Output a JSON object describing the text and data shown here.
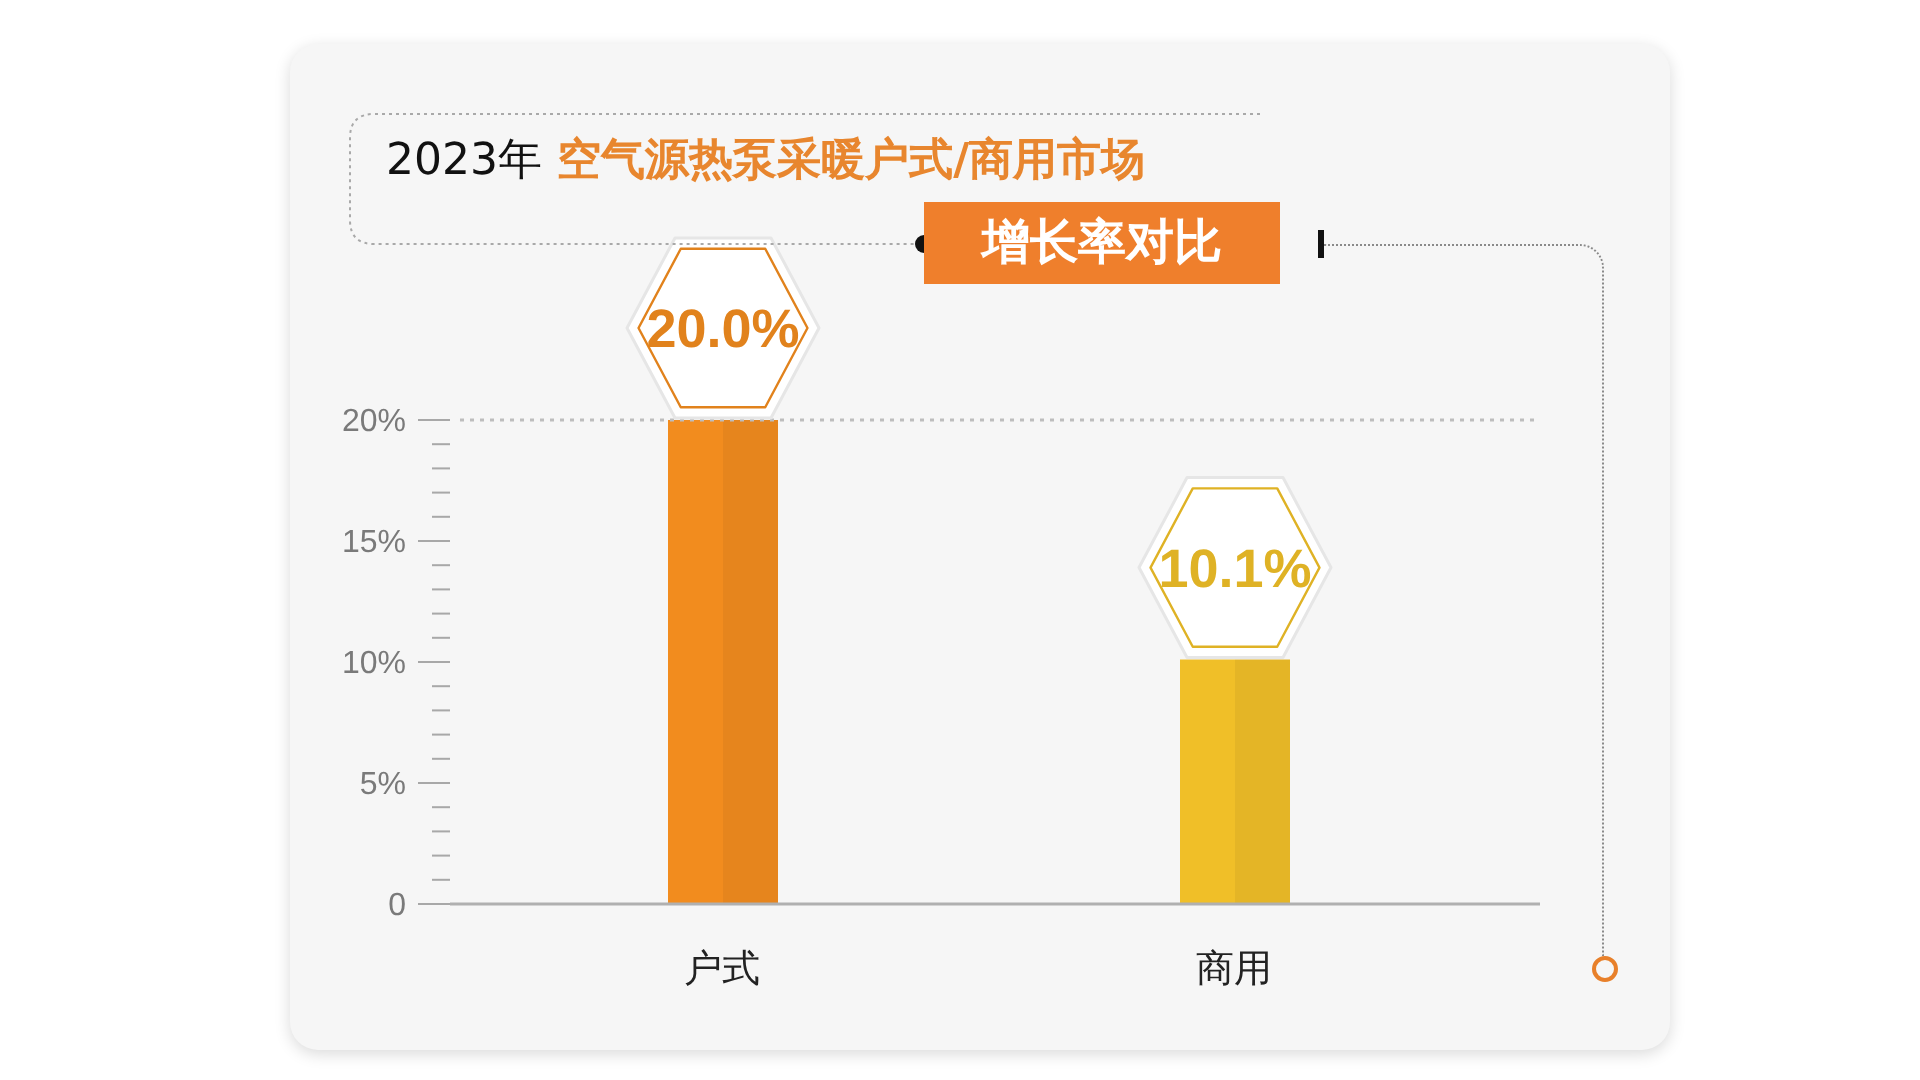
{
  "chart_data": {
    "type": "bar",
    "title": "2023年 空气源热泵采暖户式/商用市场",
    "subtitle": "增长率对比",
    "categories": [
      "户式",
      "商用"
    ],
    "values": [
      20.0,
      10.1
    ],
    "colors": [
      "#f28c1e",
      "#f0bf28"
    ],
    "value_labels": [
      "20.0%",
      "10.1%"
    ],
    "ylim": [
      0,
      20
    ],
    "yticks": [
      0,
      {
        "value": 1,
        "label": null
      },
      {
        "value": 2,
        "label": null
      },
      {
        "value": 3,
        "label": null
      },
      {
        "value": 4,
        "label": null
      },
      {
        "value": 5,
        "label": "5%"
      },
      {
        "value": 6,
        "label": null
      },
      {
        "value": 7,
        "label": null
      },
      {
        "value": 8,
        "label": null
      },
      {
        "value": 9,
        "label": null
      },
      {
        "value": 10,
        "label": "10%"
      },
      {
        "value": 11,
        "label": null
      },
      {
        "value": 12,
        "label": null
      },
      {
        "value": 13,
        "label": null
      },
      {
        "value": 14,
        "label": null
      },
      {
        "value": 15,
        "label": "15%"
      },
      {
        "value": 16,
        "label": null
      },
      {
        "value": 17,
        "label": null
      },
      {
        "value": 18,
        "label": null
      },
      {
        "value": 19,
        "label": null
      },
      {
        "value": 20,
        "label": "20%"
      }
    ],
    "ref_lines": [
      {
        "axis": "y",
        "value": 20,
        "color": "#bdbdbd",
        "line_style": "dotted"
      }
    ]
  }
}
